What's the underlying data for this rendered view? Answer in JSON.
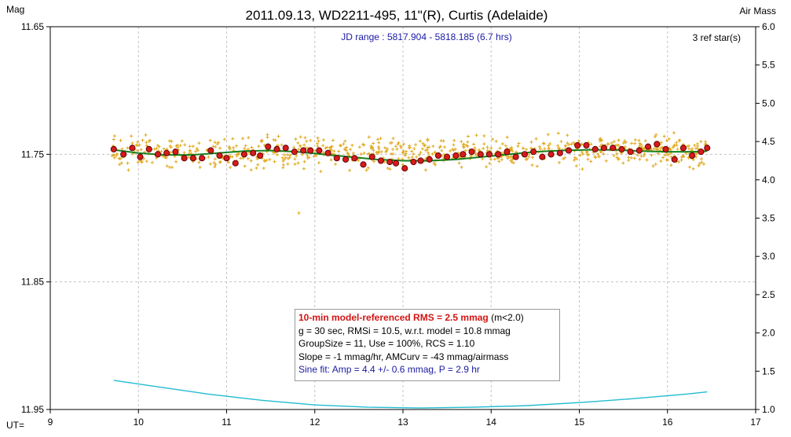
{
  "chart_data": {
    "type": "scatter",
    "title": "2011.09.13, WD2211-495, 11\"(R), Curtis (Adelaide)",
    "y_label": "Mag",
    "y2_label": "Air Mass",
    "x_label": "UT=",
    "subtitle": "JD range : 5817.904 - 5818.185 (6.7 hrs)",
    "ref_stars": "3 ref star(s)",
    "xlim": [
      9,
      17
    ],
    "ylim": [
      11.65,
      11.95
    ],
    "y_inverted": true,
    "y2lim": [
      1.0,
      6.0
    ],
    "x_ticks": [
      "9",
      "10",
      "11",
      "12",
      "13",
      "14",
      "15",
      "16",
      "17"
    ],
    "y_ticks": [
      "11.65",
      "11.75",
      "11.85",
      "11.95"
    ],
    "y2_ticks": [
      "1.0",
      "1.5",
      "2.0",
      "2.5",
      "3.0",
      "3.5",
      "4.0",
      "4.5",
      "5.0",
      "5.5",
      "6.0"
    ],
    "grid": true,
    "series": [
      {
        "kind": "raw",
        "color": "#e0a81c",
        "x_range": [
          9.7,
          16.45
        ],
        "center": 11.748,
        "spread": 0.0105
      },
      {
        "kind": "binned",
        "color": "#d51b1b",
        "x": [
          9.72,
          9.83,
          9.93,
          10.02,
          10.12,
          10.22,
          10.32,
          10.42,
          10.52,
          10.62,
          10.72,
          10.82,
          10.92,
          11.0,
          11.1,
          11.2,
          11.3,
          11.38,
          11.47,
          11.57,
          11.67,
          11.77,
          11.87,
          11.95,
          12.05,
          12.15,
          12.25,
          12.35,
          12.45,
          12.55,
          12.65,
          12.75,
          12.85,
          12.92,
          13.02,
          13.12,
          13.2,
          13.3,
          13.4,
          13.5,
          13.6,
          13.68,
          13.78,
          13.88,
          13.98,
          14.08,
          14.18,
          14.28,
          14.38,
          14.48,
          14.58,
          14.68,
          14.78,
          14.88,
          14.98,
          15.08,
          15.18,
          15.28,
          15.38,
          15.48,
          15.58,
          15.68,
          15.78,
          15.88,
          15.98,
          16.08,
          16.18,
          16.28,
          16.38,
          16.45
        ],
        "y": [
          11.746,
          11.75,
          11.745,
          11.752,
          11.746,
          11.75,
          11.749,
          11.748,
          11.753,
          11.753,
          11.753,
          11.747,
          11.751,
          11.753,
          11.757,
          11.75,
          11.749,
          11.751,
          11.744,
          11.746,
          11.745,
          11.748,
          11.747,
          11.747,
          11.747,
          11.749,
          11.753,
          11.754,
          11.753,
          11.758,
          11.752,
          11.755,
          11.756,
          11.757,
          11.761,
          11.756,
          11.755,
          11.754,
          11.751,
          11.752,
          11.751,
          11.75,
          11.748,
          11.75,
          11.75,
          11.75,
          11.748,
          11.752,
          11.75,
          11.748,
          11.752,
          11.75,
          11.749,
          11.747,
          11.743,
          11.743,
          11.746,
          11.745,
          11.745,
          11.746,
          11.748,
          11.747,
          11.744,
          11.742,
          11.746,
          11.754,
          11.745,
          11.751,
          11.748,
          11.745
        ]
      },
      {
        "kind": "model",
        "color": "#16801e",
        "x": [
          9.72,
          10.0,
          10.3,
          10.6,
          10.9,
          11.2,
          11.5,
          11.8,
          12.1,
          12.4,
          12.7,
          13.0,
          13.3,
          13.6,
          13.9,
          14.2,
          14.5,
          14.8,
          15.1,
          15.4,
          15.7,
          16.0,
          16.3,
          16.45
        ],
        "y": [
          11.7465,
          11.749,
          11.7505,
          11.7505,
          11.749,
          11.7475,
          11.747,
          11.748,
          11.75,
          11.752,
          11.754,
          11.755,
          11.755,
          11.754,
          11.752,
          11.75,
          11.748,
          11.747,
          11.7465,
          11.7465,
          11.7475,
          11.748,
          11.748,
          11.7475
        ]
      },
      {
        "kind": "airmass",
        "color": "#22bcd0",
        "axis": "right",
        "x": [
          9.72,
          10.2,
          10.8,
          11.4,
          12.0,
          12.6,
          13.2,
          13.8,
          14.4,
          15.0,
          15.6,
          16.2,
          16.45
        ],
        "y": [
          1.38,
          1.3,
          1.2,
          1.12,
          1.06,
          1.03,
          1.02,
          1.03,
          1.05,
          1.09,
          1.14,
          1.2,
          1.23
        ]
      }
    ],
    "info": {
      "line1": "10-min model-referenced RMS = 2.5 mmag",
      "line1_suffix": " (m<2.0)",
      "line2": "g = 30 sec, RMSi = 10.5, w.r.t. model = 10.8 mmag",
      "line3": "GroupSize = 11, Use = 100%, RCS = 1.10",
      "line4": "Slope = -1 mmag/hr, AMCurv = -43 mmag/airmass",
      "line5": "Sine fit: Amp = 4.4 +/- 0.6 mmag, P = 2.9 hr"
    }
  }
}
